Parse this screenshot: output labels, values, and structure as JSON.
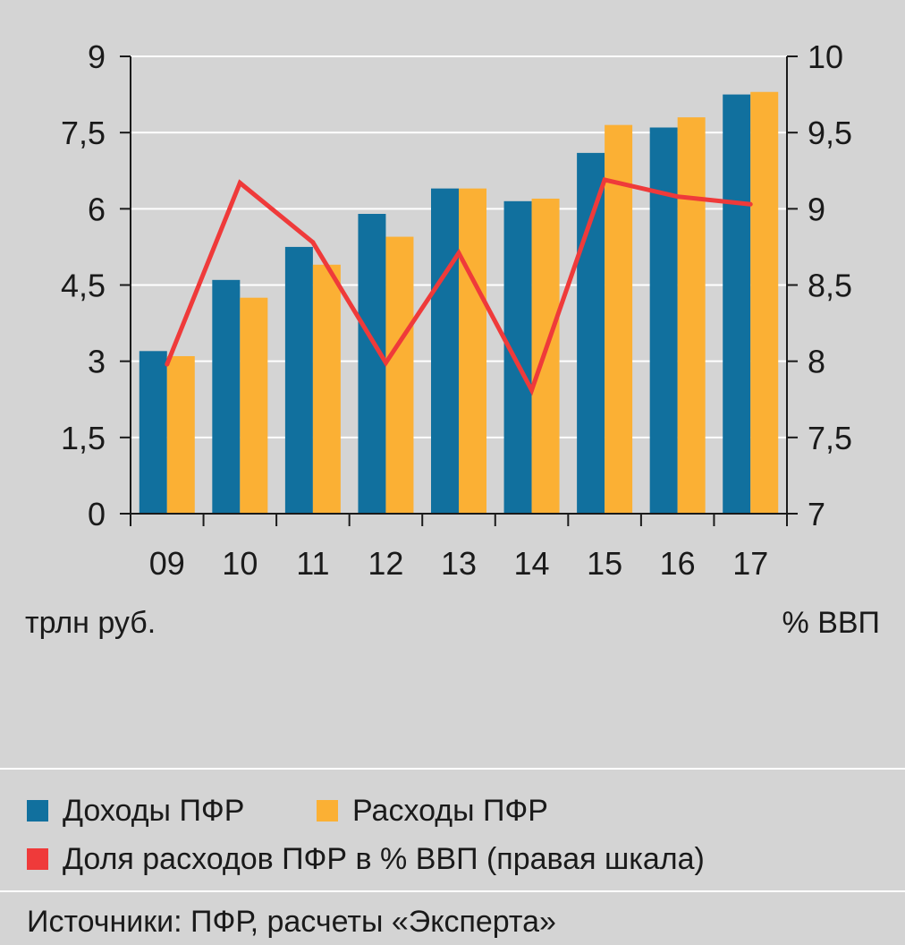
{
  "chart_data": {
    "type": "bar",
    "categories": [
      "09",
      "10",
      "11",
      "12",
      "13",
      "14",
      "15",
      "16",
      "17"
    ],
    "series": [
      {
        "name": "Доходы ПФР",
        "type": "bar",
        "axis": "left",
        "color": "#11709e",
        "values": [
          3.2,
          4.6,
          5.25,
          5.9,
          6.4,
          6.15,
          7.1,
          7.6,
          8.25
        ]
      },
      {
        "name": "Расходы ПФР",
        "type": "bar",
        "axis": "left",
        "color": "#fbb034",
        "values": [
          3.1,
          4.25,
          4.9,
          5.45,
          6.4,
          6.2,
          7.65,
          7.8,
          8.3
        ]
      },
      {
        "name": "Доля расходов ПФР в % ВВП (правая шкала)",
        "type": "line",
        "axis": "right",
        "color": "#ef3a3a",
        "values": [
          7.98,
          9.17,
          8.78,
          7.99,
          8.71,
          7.81,
          9.19,
          9.08,
          9.03
        ]
      }
    ],
    "y_left": {
      "label": "трлн руб.",
      "ylim": [
        0,
        9
      ],
      "ticks": [
        "0",
        "1,5",
        "3",
        "4,5",
        "6",
        "7,5",
        "9"
      ]
    },
    "y_right": {
      "label": "% ВВП",
      "ylim": [
        7,
        10
      ],
      "ticks": [
        "7",
        "7,5",
        "8",
        "8,5",
        "9",
        "9,5",
        "10"
      ]
    },
    "grid": true,
    "legend_position": "bottom"
  },
  "units": {
    "left": "трлн руб.",
    "right": "% ВВП"
  },
  "legend": {
    "income": {
      "label": "Доходы ПФР",
      "color": "#11709e"
    },
    "expense": {
      "label": "Расходы ПФР",
      "color": "#fbb034"
    },
    "share": {
      "label": "Доля расходов ПФР в % ВВП (правая шкала)",
      "color": "#ef3a3a"
    }
  },
  "source": "Источники: ПФР, расчеты «Эксперта»"
}
